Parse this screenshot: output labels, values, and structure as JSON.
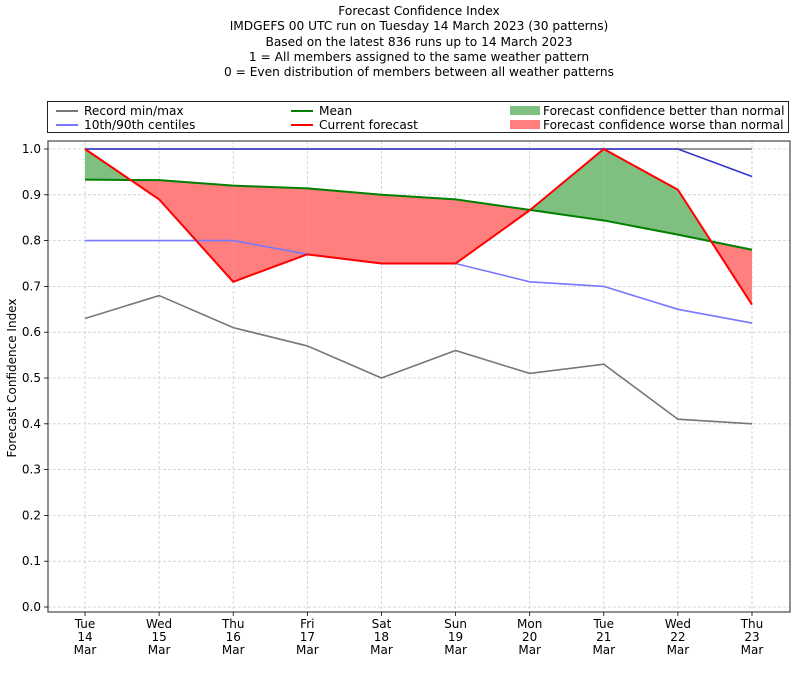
{
  "chart_data": {
    "type": "line",
    "title": "Forecast Confidence Index",
    "subtitle_lines": [
      "IMDGEFS 00 UTC run on Tuesday 14 March 2023 (30 patterns)",
      "Based on the latest 836 runs up to 14 March 2023",
      "1 = All members assigned to the same weather pattern",
      "0 = Even distribution of members between all weather patterns"
    ],
    "xlabel": "",
    "ylabel": "Forecast Confidence Index",
    "ylim": [
      0.0,
      1.0
    ],
    "yticks": [
      "0.0",
      "0.1",
      "0.2",
      "0.3",
      "0.4",
      "0.5",
      "0.6",
      "0.7",
      "0.8",
      "0.9",
      "1.0"
    ],
    "grid": true,
    "legend_position": "top (above plot, full width)",
    "categories": [
      [
        "Tue",
        "14",
        "Mar"
      ],
      [
        "Wed",
        "15",
        "Mar"
      ],
      [
        "Thu",
        "16",
        "Mar"
      ],
      [
        "Fri",
        "17",
        "Mar"
      ],
      [
        "Sat",
        "18",
        "Mar"
      ],
      [
        "Sun",
        "19",
        "Mar"
      ],
      [
        "Mon",
        "20",
        "Mar"
      ],
      [
        "Tue",
        "21",
        "Mar"
      ],
      [
        "Wed",
        "22",
        "Mar"
      ],
      [
        "Thu",
        "23",
        "Mar"
      ]
    ],
    "series": [
      {
        "name": "Record min",
        "legend": "Record min/max",
        "color": "#777777",
        "values": [
          0.63,
          0.68,
          0.61,
          0.57,
          0.5,
          0.56,
          0.51,
          0.53,
          0.41,
          0.4
        ]
      },
      {
        "name": "Record max",
        "legend": "Record min/max",
        "color": "#777777",
        "values": [
          1.0,
          1.0,
          1.0,
          1.0,
          1.0,
          1.0,
          1.0,
          1.0,
          1.0,
          1.0
        ]
      },
      {
        "name": "10th centile",
        "legend": "10th/90th centiles",
        "color": "#7777ff",
        "values": [
          0.8,
          0.8,
          0.8,
          0.77,
          0.75,
          0.75,
          0.71,
          0.7,
          0.65,
          0.62
        ]
      },
      {
        "name": "90th centile",
        "legend": "10th/90th centiles",
        "color": "#3333cc",
        "values": [
          1.0,
          1.0,
          1.0,
          1.0,
          1.0,
          1.0,
          1.0,
          1.0,
          1.0,
          0.94
        ]
      },
      {
        "name": "Mean",
        "legend": "Mean",
        "color": "#008000",
        "values": [
          0.933,
          0.932,
          0.92,
          0.914,
          0.9,
          0.89,
          0.867,
          0.844,
          0.813,
          0.78
        ]
      },
      {
        "name": "Current forecast",
        "legend": "Current forecast",
        "color": "#ff0000",
        "values": [
          1.0,
          0.89,
          0.71,
          0.77,
          0.75,
          0.75,
          0.866,
          1.0,
          0.911,
          0.66
        ]
      }
    ],
    "fills": [
      {
        "name": "Forecast confidence better than normal",
        "color": "#7fbf7f",
        "condition": "current > mean"
      },
      {
        "name": "Forecast confidence worse than normal",
        "color": "#ff7f7f",
        "condition": "current < mean"
      }
    ]
  },
  "legend": {
    "items": [
      {
        "label": "Record min/max",
        "color": "#777777",
        "kind": "line"
      },
      {
        "label": "10th/90th centiles",
        "color": "#7777ff",
        "kind": "line"
      },
      {
        "label": "Mean",
        "color": "#008000",
        "kind": "line"
      },
      {
        "label": "Current forecast",
        "color": "#ff0000",
        "kind": "line"
      },
      {
        "label": "Forecast confidence better than normal",
        "color": "#7fbf7f",
        "kind": "patch"
      },
      {
        "label": "Forecast confidence worse than normal",
        "color": "#ff7f7f",
        "kind": "patch"
      }
    ]
  }
}
